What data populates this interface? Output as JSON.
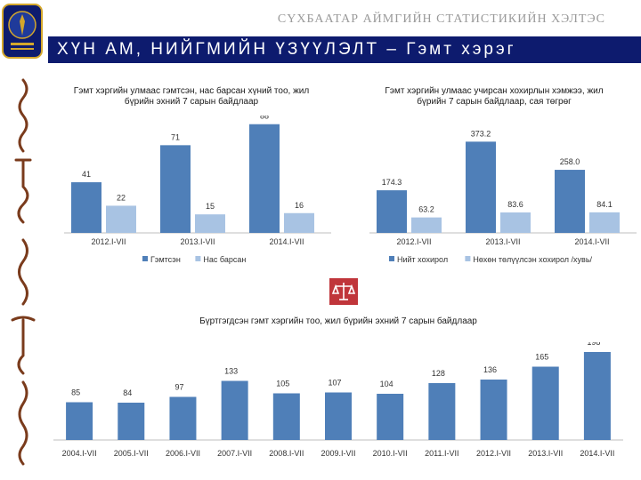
{
  "header": {
    "org_name": "СҮХБААТАР АЙМГИЙН СТАТИСТИКИЙН ХЭЛТЭС",
    "page_title": "ХҮН АМ, НИЙГМИЙН ҮЗҮҮЛЭЛТ – Гэмт хэрэг"
  },
  "colors": {
    "primary": "#4f7fb8",
    "secondary": "#a8c3e3",
    "title_bar": "#0d1b6e",
    "accent": "#c0353a"
  },
  "icons": {
    "logo": "state-emblem-icon",
    "scale": "scales-of-justice-icon",
    "strip": "mongolian-script-decoration"
  },
  "chart_data": [
    {
      "type": "bar",
      "title": "Гэмт хэргийн улмаас гэмтсэн, нас барсан хүний тоо, жил бүрийн эхний 7 сарын байдлаар",
      "categories": [
        "2012.I-VII",
        "2013.I-VII",
        "2014.I-VII"
      ],
      "series": [
        {
          "name": "Гэмтсэн",
          "values": [
            41,
            71,
            88
          ],
          "labels": [
            "41",
            "71",
            "88"
          ]
        },
        {
          "name": "Нас барсан",
          "values": [
            22,
            15,
            16
          ],
          "labels": [
            "22",
            "15",
            "16"
          ]
        }
      ],
      "ylim": [
        0,
        95
      ],
      "legend": "bottom"
    },
    {
      "type": "bar",
      "title": "Гэмт хэргийн улмаас учирсан хохирлын хэмжээ, жил бүрийн 7 сарын байдлаар, сая төгрөг",
      "categories": [
        "2012.I-VII",
        "2013.I-VII",
        "2014.I-VII"
      ],
      "series": [
        {
          "name": "Нийт хохирол",
          "values": [
            174.3,
            373.2,
            258.0
          ],
          "labels": [
            "174.3",
            "373.2",
            "258.0"
          ]
        },
        {
          "name": "Нөхөн төлүүлсэн хохирол /хувь/",
          "values": [
            63.2,
            83.6,
            84.1
          ],
          "labels": [
            "63.2",
            "83.6",
            "84.1"
          ]
        }
      ],
      "ylim": [
        0,
        400
      ],
      "legend": "bottom"
    },
    {
      "type": "bar",
      "title": "Бүртгэгдсэн гэмт хэргийн тоо, жил бүрийн эхний 7 сарын байдлаар",
      "categories": [
        "2004.I-VII",
        "2005.I-VII",
        "2006.I-VII",
        "2007.I-VII",
        "2008.I-VII",
        "2009.I-VII",
        "2010.I-VII",
        "2011.I-VII",
        "2012.I-VII",
        "2013.I-VII",
        "2014.I-VII"
      ],
      "series": [
        {
          "name": "Бүртгэгдсэн гэмт хэрэг",
          "values": [
            85,
            84,
            97,
            133,
            105,
            107,
            104,
            128,
            136,
            165,
            198
          ],
          "labels": [
            "85",
            "84",
            "97",
            "133",
            "105",
            "107",
            "104",
            "128",
            "136",
            "165",
            "198"
          ]
        }
      ],
      "ylim": [
        0,
        200
      ],
      "legend": "none"
    }
  ]
}
